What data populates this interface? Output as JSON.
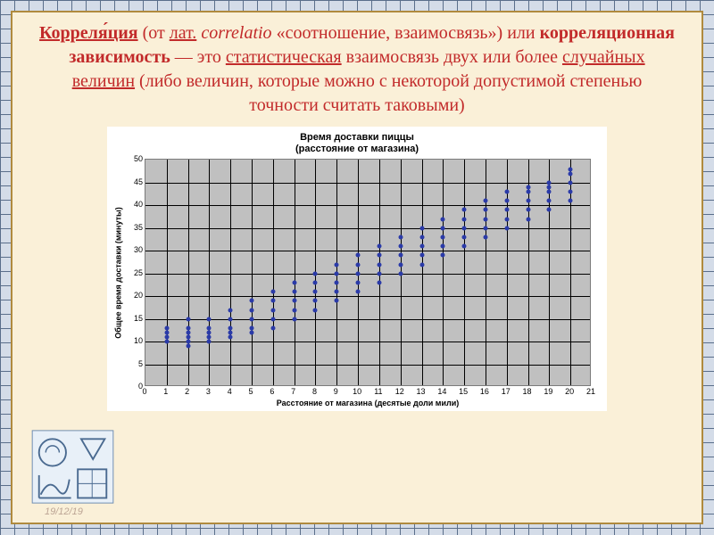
{
  "definition": {
    "term": "Корреля́ция",
    "paren_open": " (от ",
    "lat_label": "лат.",
    "lat_word": " correlatio ",
    "translation": "«соотношение, взаимосвязь») или ",
    "alt_term": "корреляционная зависимость",
    "dash": " — это ",
    "stat": "статистическая",
    "mid": " взаимосвязь двух или более ",
    "rand": "случайных величин",
    "tail": " (либо величин, которые можно с некоторой допустимой степенью точности считать таковыми)"
  },
  "chart": {
    "type": "scatter",
    "title_l1": "Время доставки пиццы",
    "title_l2": "(расстояние от магазина)",
    "title_fontsize": 11,
    "xlabel": "Расстояние от магазина (десятые доли мили)",
    "ylabel": "Общее время доставки (минуты)",
    "label_fontsize": 9,
    "xlim": [
      0,
      21
    ],
    "ylim": [
      0,
      50
    ],
    "xtick_step": 1,
    "ytick_step": 5,
    "plot_bg": "#c0c0c0",
    "grid_color": "#000000",
    "marker_color": "#2a3aa8",
    "marker_size": 5,
    "outer_bg": "#ffffff",
    "points": [
      [
        1,
        10
      ],
      [
        1,
        11
      ],
      [
        1,
        12
      ],
      [
        1,
        13
      ],
      [
        2,
        9
      ],
      [
        2,
        10
      ],
      [
        2,
        11
      ],
      [
        2,
        12
      ],
      [
        2,
        13
      ],
      [
        2,
        15
      ],
      [
        3,
        10
      ],
      [
        3,
        11
      ],
      [
        3,
        12
      ],
      [
        3,
        13
      ],
      [
        3,
        15
      ],
      [
        4,
        11
      ],
      [
        4,
        12
      ],
      [
        4,
        13
      ],
      [
        4,
        15
      ],
      [
        4,
        17
      ],
      [
        5,
        12
      ],
      [
        5,
        13
      ],
      [
        5,
        15
      ],
      [
        5,
        17
      ],
      [
        5,
        19
      ],
      [
        6,
        13
      ],
      [
        6,
        15
      ],
      [
        6,
        17
      ],
      [
        6,
        19
      ],
      [
        6,
        21
      ],
      [
        7,
        15
      ],
      [
        7,
        17
      ],
      [
        7,
        19
      ],
      [
        7,
        21
      ],
      [
        7,
        23
      ],
      [
        8,
        17
      ],
      [
        8,
        19
      ],
      [
        8,
        21
      ],
      [
        8,
        23
      ],
      [
        8,
        25
      ],
      [
        9,
        19
      ],
      [
        9,
        21
      ],
      [
        9,
        23
      ],
      [
        9,
        25
      ],
      [
        9,
        27
      ],
      [
        10,
        21
      ],
      [
        10,
        23
      ],
      [
        10,
        25
      ],
      [
        10,
        27
      ],
      [
        10,
        29
      ],
      [
        11,
        23
      ],
      [
        11,
        25
      ],
      [
        11,
        27
      ],
      [
        11,
        29
      ],
      [
        11,
        31
      ],
      [
        12,
        25
      ],
      [
        12,
        27
      ],
      [
        12,
        29
      ],
      [
        12,
        31
      ],
      [
        12,
        33
      ],
      [
        13,
        27
      ],
      [
        13,
        29
      ],
      [
        13,
        31
      ],
      [
        13,
        33
      ],
      [
        13,
        35
      ],
      [
        14,
        29
      ],
      [
        14,
        31
      ],
      [
        14,
        33
      ],
      [
        14,
        35
      ],
      [
        14,
        37
      ],
      [
        15,
        31
      ],
      [
        15,
        33
      ],
      [
        15,
        35
      ],
      [
        15,
        37
      ],
      [
        15,
        39
      ],
      [
        16,
        33
      ],
      [
        16,
        35
      ],
      [
        16,
        37
      ],
      [
        16,
        39
      ],
      [
        16,
        41
      ],
      [
        17,
        35
      ],
      [
        17,
        37
      ],
      [
        17,
        39
      ],
      [
        17,
        41
      ],
      [
        17,
        43
      ],
      [
        18,
        37
      ],
      [
        18,
        39
      ],
      [
        18,
        41
      ],
      [
        18,
        43
      ],
      [
        18,
        44
      ],
      [
        19,
        39
      ],
      [
        19,
        41
      ],
      [
        19,
        43
      ],
      [
        19,
        44
      ],
      [
        19,
        45
      ],
      [
        20,
        41
      ],
      [
        20,
        43
      ],
      [
        20,
        45
      ],
      [
        20,
        47
      ],
      [
        20,
        48
      ]
    ]
  },
  "footer": {
    "date": "19/12/19"
  },
  "page_bg": "#faf0d8",
  "page_border": "#b08a3e",
  "text_red": "#c22a2a"
}
